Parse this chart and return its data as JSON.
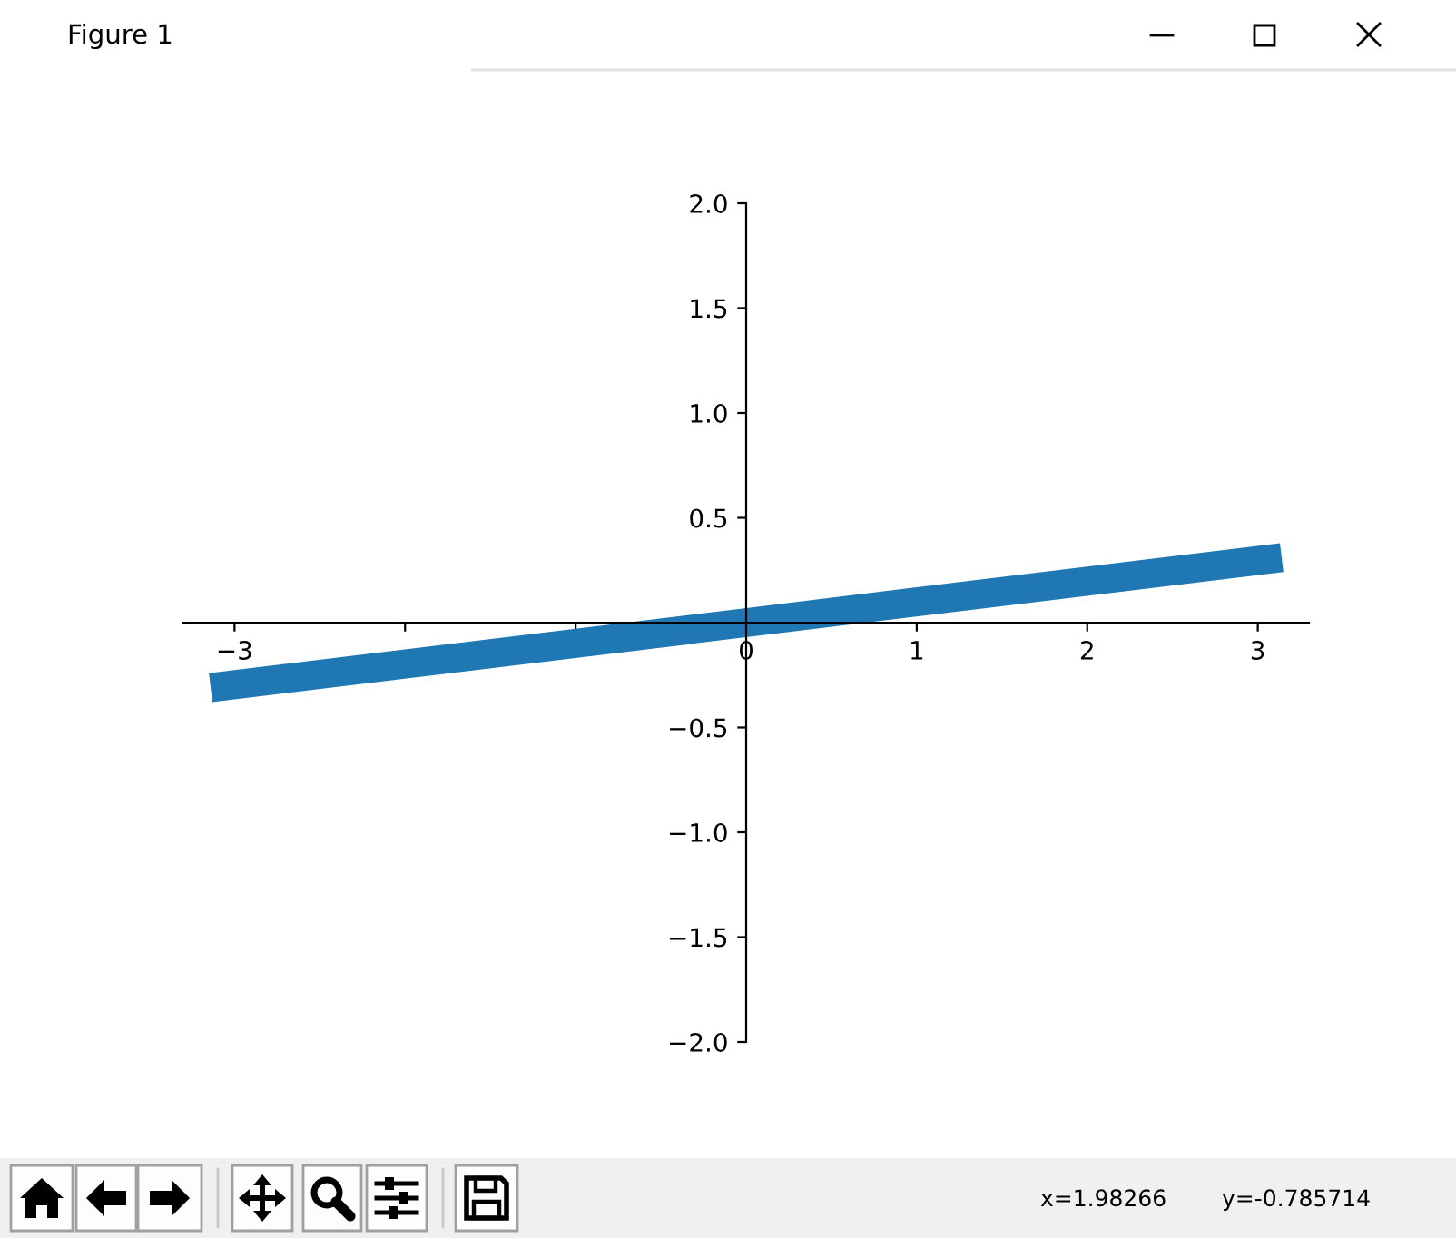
{
  "chart_data": {
    "type": "line",
    "title": "Figure 1",
    "annotations": [
      "x=1.98266",
      "y=-0.785714"
    ],
    "x": [
      -3.14,
      0,
      3.14
    ],
    "values": [
      -0.31,
      0,
      0.31
    ],
    "color": "#1f77b4",
    "xlim": [
      -3.3,
      3.3
    ],
    "ylim": [
      -2,
      2
    ],
    "xticks": [
      {
        "value": -3,
        "label": "−3"
      },
      {
        "value": -2,
        "label": null
      },
      {
        "value": -1,
        "label": null
      },
      0,
      1,
      2,
      3
    ],
    "yticks": [
      {
        "value": -2,
        "label": "−2.0"
      },
      {
        "value": -1.5,
        "label": "−1.5"
      },
      {
        "value": -1,
        "label": "−1.0"
      },
      {
        "value": -0.5,
        "label": "−0.5"
      },
      {
        "value": 0.5,
        "label": "0.5"
      },
      {
        "value": 1,
        "label": "1.0"
      },
      {
        "value": 1.5,
        "label": "1.5"
      },
      {
        "value": 2,
        "label": "2.0"
      }
    ]
  }
}
